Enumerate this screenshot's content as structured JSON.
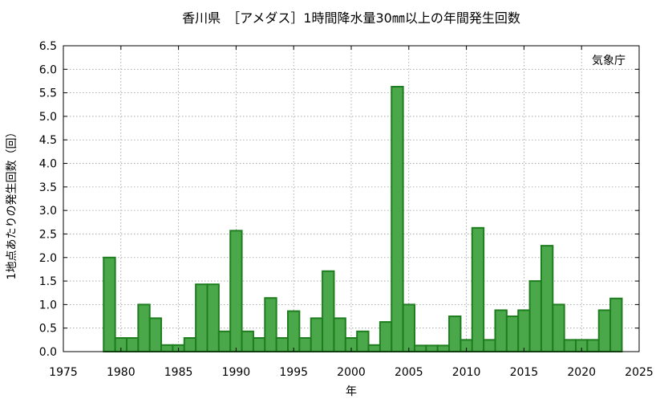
{
  "chart_data": {
    "type": "bar",
    "title": "香川県　［アメダス］1時間降水量30㎜以上の年間発生回数",
    "xlabel": "年",
    "ylabel": "1地点あたりの発生回数（回）",
    "annotation": "気象庁",
    "xlim": [
      1975,
      2025
    ],
    "ylim": [
      0,
      6.5
    ],
    "x_ticks": [
      "1975",
      "1980",
      "1985",
      "1990",
      "1995",
      "2000",
      "2005",
      "2010",
      "2015",
      "2020",
      "2025"
    ],
    "y_ticks": [
      "0.0",
      "0.5",
      "1.0",
      "1.5",
      "2.0",
      "2.5",
      "3.0",
      "3.5",
      "4.0",
      "4.5",
      "5.0",
      "5.5",
      "6.0",
      "6.5"
    ],
    "grid": true,
    "bar_color": "#4aa84a",
    "bar_edge_color": "#1e7d1e",
    "x": [
      1979,
      1980,
      1981,
      1982,
      1983,
      1984,
      1985,
      1986,
      1987,
      1988,
      1989,
      1990,
      1991,
      1992,
      1993,
      1994,
      1995,
      1996,
      1997,
      1998,
      1999,
      2000,
      2001,
      2002,
      2003,
      2004,
      2005,
      2006,
      2007,
      2008,
      2009,
      2010,
      2011,
      2012,
      2013,
      2014,
      2015,
      2016,
      2017,
      2018,
      2019,
      2020,
      2021,
      2022,
      2023
    ],
    "values": [
      2.0,
      0.29,
      0.29,
      1.0,
      0.71,
      0.14,
      0.14,
      0.29,
      1.43,
      1.43,
      0.43,
      2.57,
      0.43,
      0.29,
      1.14,
      0.29,
      0.86,
      0.29,
      0.71,
      1.71,
      0.71,
      0.29,
      0.43,
      0.14,
      0.63,
      5.63,
      1.0,
      0.13,
      0.13,
      0.13,
      0.75,
      0.25,
      2.63,
      0.25,
      0.88,
      0.75,
      0.88,
      1.5,
      2.25,
      1.0,
      0.25,
      0.25,
      0.25,
      0.88,
      1.13
    ]
  }
}
